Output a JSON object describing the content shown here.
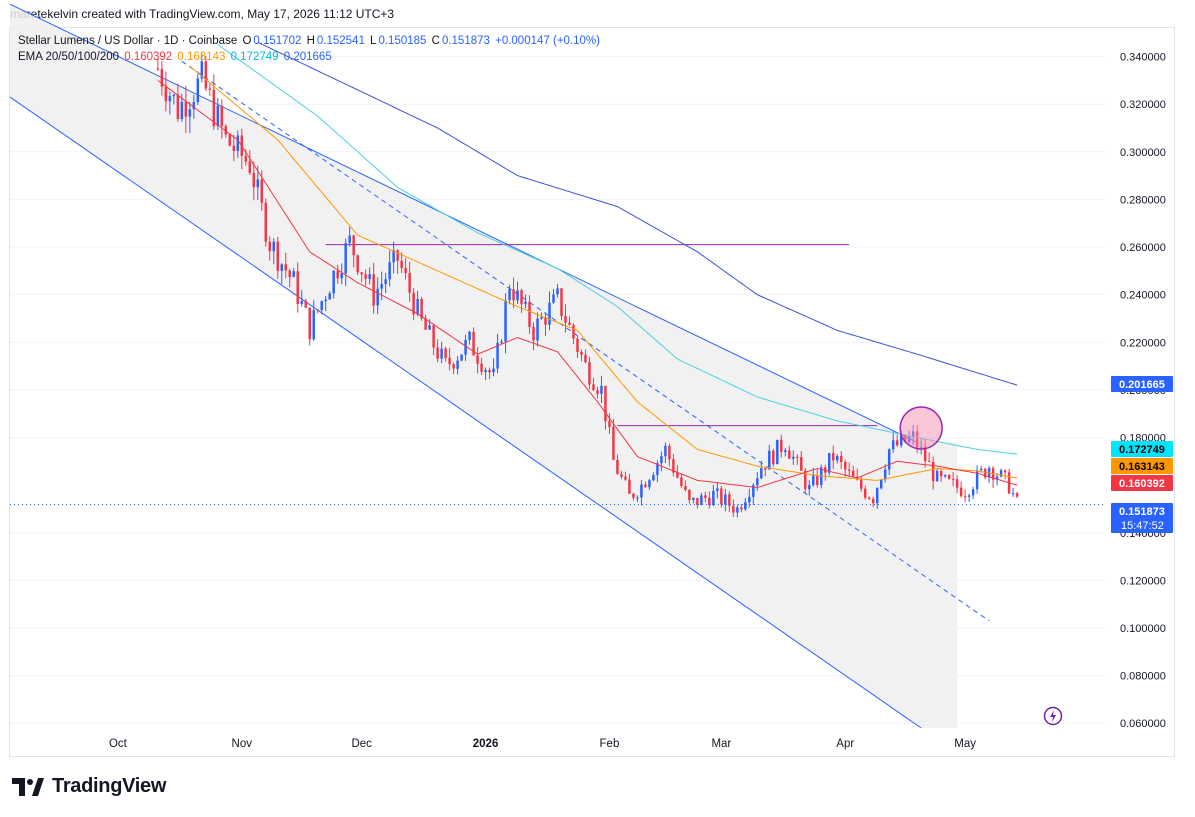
{
  "header": {
    "credit": "maretekelvin created with TradingView.com, May 17, 2026 11:12 UTC+3"
  },
  "legend": {
    "symbol": "Stellar Lumens / US Dollar · 1D · Coinbase",
    "o_label": "O",
    "o_value": "0.151702",
    "h_label": "H",
    "h_value": "0.152541",
    "l_label": "L",
    "l_value": "0.150185",
    "c_label": "C",
    "c_value": "0.151873",
    "change": "+0.000147 (+0.10%)",
    "ema_label": "EMA 20/50/100/200",
    "ema20": "0.160392",
    "ema50": "0.163143",
    "ema100": "0.172749",
    "ema200": "0.201665"
  },
  "brand": {
    "name": "TradingView"
  },
  "colors": {
    "up": "#2962ff",
    "down": "#f23645",
    "ema20": "#f23645",
    "ema50": "#ff9800",
    "ema100": "#4dd0e1",
    "ema200": "#3f51d6",
    "channel": "#2962ff",
    "level": "#9c27b0"
  },
  "chart_data": {
    "type": "candlestick",
    "symbol": "XLM/USD",
    "timeframe": "1D",
    "ylim": [
      0.058,
      0.352
    ],
    "y_ticks": [
      "0.340000",
      "0.320000",
      "0.300000",
      "0.280000",
      "0.260000",
      "0.240000",
      "0.220000",
      "0.200000",
      "0.180000",
      "0.140000",
      "0.120000",
      "0.100000",
      "0.080000",
      "0.060000"
    ],
    "x_ticks": [
      {
        "label": "Oct",
        "day": 0
      },
      {
        "label": "Nov",
        "day": 31
      },
      {
        "label": "Dec",
        "day": 61
      },
      {
        "label": "2026",
        "day": 92
      },
      {
        "label": "Feb",
        "day": 123
      },
      {
        "label": "Mar",
        "day": 151
      },
      {
        "label": "Apr",
        "day": 182
      },
      {
        "label": "May",
        "day": 212
      }
    ],
    "x_range_days": [
      -27,
      247
    ],
    "price_labels": [
      {
        "value": 0.201665,
        "text": "0.201665",
        "color": "#2962ff"
      },
      {
        "value": 0.172749,
        "text": "0.172749",
        "color": "#00e5ff"
      },
      {
        "value": 0.163143,
        "text": "0.163143",
        "color": "#ff9800"
      },
      {
        "value": 0.160392,
        "text": "0.160392",
        "color": "#f23645"
      },
      {
        "value": 0.151873,
        "text": "0.151873",
        "countdown": "15:47:52",
        "color": "#2962ff"
      }
    ],
    "price_anchors": [
      [
        10,
        0.335
      ],
      [
        15,
        0.318
      ],
      [
        21,
        0.33
      ],
      [
        27,
        0.305
      ],
      [
        33,
        0.295
      ],
      [
        38,
        0.262
      ],
      [
        44,
        0.245
      ],
      [
        48,
        0.226
      ],
      [
        53,
        0.245
      ],
      [
        58,
        0.262
      ],
      [
        64,
        0.24
      ],
      [
        70,
        0.255
      ],
      [
        76,
        0.228
      ],
      [
        82,
        0.21
      ],
      [
        88,
        0.22
      ],
      [
        94,
        0.205
      ],
      [
        98,
        0.245
      ],
      [
        104,
        0.225
      ],
      [
        110,
        0.238
      ],
      [
        117,
        0.21
      ],
      [
        121,
        0.2
      ],
      [
        124,
        0.17
      ],
      [
        128,
        0.155
      ],
      [
        131,
        0.16
      ],
      [
        137,
        0.175
      ],
      [
        143,
        0.152
      ],
      [
        149,
        0.156
      ],
      [
        155,
        0.15
      ],
      [
        161,
        0.168
      ],
      [
        167,
        0.178
      ],
      [
        173,
        0.158
      ],
      [
        179,
        0.172
      ],
      [
        185,
        0.16
      ],
      [
        189,
        0.155
      ],
      [
        193,
        0.175
      ],
      [
        199,
        0.18
      ],
      [
        205,
        0.162
      ],
      [
        212,
        0.158
      ],
      [
        218,
        0.168
      ],
      [
        223,
        0.16
      ],
      [
        225,
        0.152
      ]
    ],
    "ema20": [
      [
        10,
        0.33
      ],
      [
        30,
        0.305
      ],
      [
        48,
        0.258
      ],
      [
        60,
        0.245
      ],
      [
        75,
        0.232
      ],
      [
        90,
        0.215
      ],
      [
        100,
        0.222
      ],
      [
        110,
        0.216
      ],
      [
        120,
        0.195
      ],
      [
        130,
        0.172
      ],
      [
        145,
        0.162
      ],
      [
        160,
        0.159
      ],
      [
        175,
        0.167
      ],
      [
        185,
        0.163
      ],
      [
        195,
        0.17
      ],
      [
        205,
        0.168
      ],
      [
        215,
        0.165
      ],
      [
        225,
        0.16
      ]
    ],
    "ema50": [
      [
        18,
        0.336
      ],
      [
        40,
        0.305
      ],
      [
        60,
        0.265
      ],
      [
        80,
        0.25
      ],
      [
        100,
        0.235
      ],
      [
        115,
        0.225
      ],
      [
        130,
        0.195
      ],
      [
        145,
        0.175
      ],
      [
        160,
        0.168
      ],
      [
        175,
        0.164
      ],
      [
        190,
        0.162
      ],
      [
        205,
        0.167
      ],
      [
        215,
        0.166
      ],
      [
        225,
        0.163
      ]
    ],
    "ema100": [
      [
        25,
        0.345
      ],
      [
        50,
        0.315
      ],
      [
        70,
        0.285
      ],
      [
        90,
        0.266
      ],
      [
        110,
        0.251
      ],
      [
        125,
        0.235
      ],
      [
        140,
        0.213
      ],
      [
        160,
        0.197
      ],
      [
        180,
        0.187
      ],
      [
        200,
        0.18
      ],
      [
        215,
        0.175
      ],
      [
        225,
        0.173
      ]
    ],
    "ema200": [
      [
        35,
        0.346
      ],
      [
        60,
        0.326
      ],
      [
        80,
        0.31
      ],
      [
        100,
        0.29
      ],
      [
        125,
        0.277
      ],
      [
        145,
        0.258
      ],
      [
        160,
        0.24
      ],
      [
        180,
        0.225
      ],
      [
        200,
        0.215
      ],
      [
        225,
        0.202
      ]
    ],
    "channel": {
      "upper": [
        [
          -27,
          0.362
        ],
        [
          200,
          0.178
        ]
      ],
      "lower": [
        [
          -27,
          0.323
        ],
        [
          201,
          0.058
        ]
      ],
      "mid": [
        [
          16,
          0.338
        ],
        [
          218,
          0.103
        ]
      ],
      "fill_end_day": 210
    },
    "resistance": [
      {
        "from": 52,
        "to": 183,
        "value": 0.261
      },
      {
        "from": 125,
        "to": 190,
        "value": 0.185
      }
    ],
    "highlight": {
      "day": 201,
      "value": 0.184
    }
  }
}
